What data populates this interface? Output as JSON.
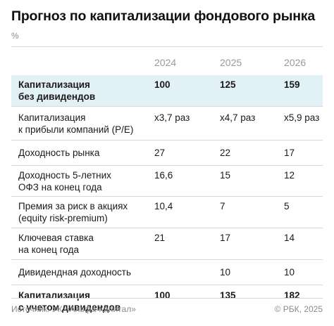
{
  "title": "Прогноз по капитализации фондового рынка",
  "unit": "%",
  "source": "Источник: УК «Альфа-Капитал»",
  "copyright": "© РБК, 2025",
  "colors": {
    "highlight_row": "#e2f1f5",
    "header_text": "#9a9a9a",
    "rule": "#d9d9d9"
  },
  "chart_data": {
    "type": "table",
    "columns": [
      "2024",
      "2025",
      "2026"
    ],
    "rows": [
      {
        "label": "Капитализация\nбез дивидендов",
        "values": [
          "100",
          "125",
          "159"
        ],
        "bold": true,
        "highlight": true
      },
      {
        "label": "Капитализация\nк прибыли компаний (P/E)",
        "values": [
          "х3,7 раз",
          "х4,7 раз",
          "х5,9 раз"
        ],
        "bold": false,
        "highlight": false
      },
      {
        "label": "Доходность рынка",
        "values": [
          "27",
          "22",
          "17"
        ],
        "bold": false,
        "highlight": false
      },
      {
        "label": "Доходность 5-летних\nОФЗ на конец года",
        "values": [
          "16,6",
          "15",
          "12"
        ],
        "bold": false,
        "highlight": false
      },
      {
        "label": "Премия за риск в акциях\n(equity risk-premium)",
        "values": [
          "10,4",
          "7",
          "5"
        ],
        "bold": false,
        "highlight": false
      },
      {
        "label": "Ключевая ставка\nна конец года",
        "values": [
          "21",
          "17",
          "14"
        ],
        "bold": false,
        "highlight": false
      },
      {
        "label": "Дивидендная доходность",
        "values": [
          "",
          "10",
          "10"
        ],
        "bold": false,
        "highlight": false
      },
      {
        "label": "Капитализация\nс учетом дивидендов",
        "values": [
          "100",
          "135",
          "182"
        ],
        "bold": true,
        "highlight": false
      }
    ]
  }
}
